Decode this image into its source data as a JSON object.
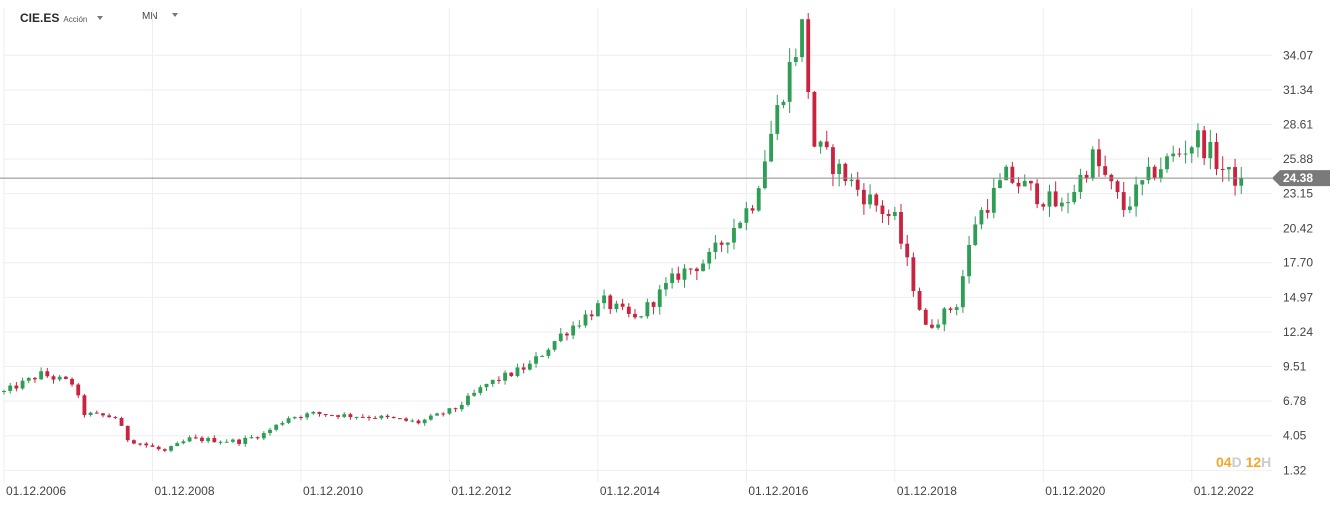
{
  "toolbar": {
    "symbol": "CIE.ES",
    "instrument_type": "Acción",
    "interval": "MN"
  },
  "timer": {
    "days": "04",
    "days_unit": "D",
    "hours": "12",
    "hours_unit": "H"
  },
  "colors": {
    "up": "#2f9e55",
    "down": "#c9243f",
    "price_line": "#8c8c8c",
    "price_tag": "#7a7a7a",
    "grid": "#eeeeee"
  },
  "chart_data": {
    "type": "candlestick",
    "title": "",
    "xlabel": "",
    "ylabel": "",
    "ylim": [
      0.4,
      37.8
    ],
    "xlim": [
      "2006-12-01",
      "2023-12-01"
    ],
    "grid": true,
    "y_ticks": [
      "34.07",
      "31.34",
      "28.61",
      "25.88",
      "23.15",
      "20.42",
      "17.70",
      "14.97",
      "12.24",
      "9.51",
      "6.78",
      "4.05",
      "1.32"
    ],
    "x_ticks": [
      "01.12.2006",
      "01.12.2008",
      "01.12.2010",
      "01.12.2012",
      "01.12.2014",
      "01.12.2016",
      "01.12.2018",
      "01.12.2020",
      "01.12.2022"
    ],
    "last_price": 24.38,
    "last_price_label": "24.38",
    "trend_anchors": [
      [
        "2006-12",
        7.5
      ],
      [
        "2007-06",
        8.9
      ],
      [
        "2007-11",
        8.2
      ],
      [
        "2008-01",
        5.8
      ],
      [
        "2008-06",
        5.5
      ],
      [
        "2008-08",
        3.8
      ],
      [
        "2009-02",
        2.8
      ],
      [
        "2009-06",
        3.8
      ],
      [
        "2010-02",
        3.6
      ],
      [
        "2010-06",
        4.2
      ],
      [
        "2010-10",
        5.5
      ],
      [
        "2011-02",
        5.8
      ],
      [
        "2012-01",
        5.5
      ],
      [
        "2012-07",
        5.1
      ],
      [
        "2013-01",
        6.2
      ],
      [
        "2013-06",
        8.1
      ],
      [
        "2014-01",
        9.6
      ],
      [
        "2014-06",
        12.0
      ],
      [
        "2015-01",
        14.6
      ],
      [
        "2015-06",
        13.2
      ],
      [
        "2016-01",
        16.8
      ],
      [
        "2016-06",
        18.0
      ],
      [
        "2017-01",
        22.5
      ],
      [
        "2017-06",
        31.5
      ],
      [
        "2017-09",
        36.2
      ],
      [
        "2017-11",
        27.0
      ],
      [
        "2018-06",
        23.5
      ],
      [
        "2018-12",
        21.0
      ],
      [
        "2019-05",
        12.5
      ],
      [
        "2019-10",
        14.5
      ],
      [
        "2020-01",
        21.0
      ],
      [
        "2020-06",
        24.5
      ],
      [
        "2021-03",
        22.0
      ],
      [
        "2021-08",
        26.0
      ],
      [
        "2022-01",
        22.0
      ],
      [
        "2022-06",
        25.0
      ],
      [
        "2023-01",
        27.5
      ],
      [
        "2023-06",
        24.5
      ],
      [
        "2023-08",
        24.38
      ]
    ]
  }
}
